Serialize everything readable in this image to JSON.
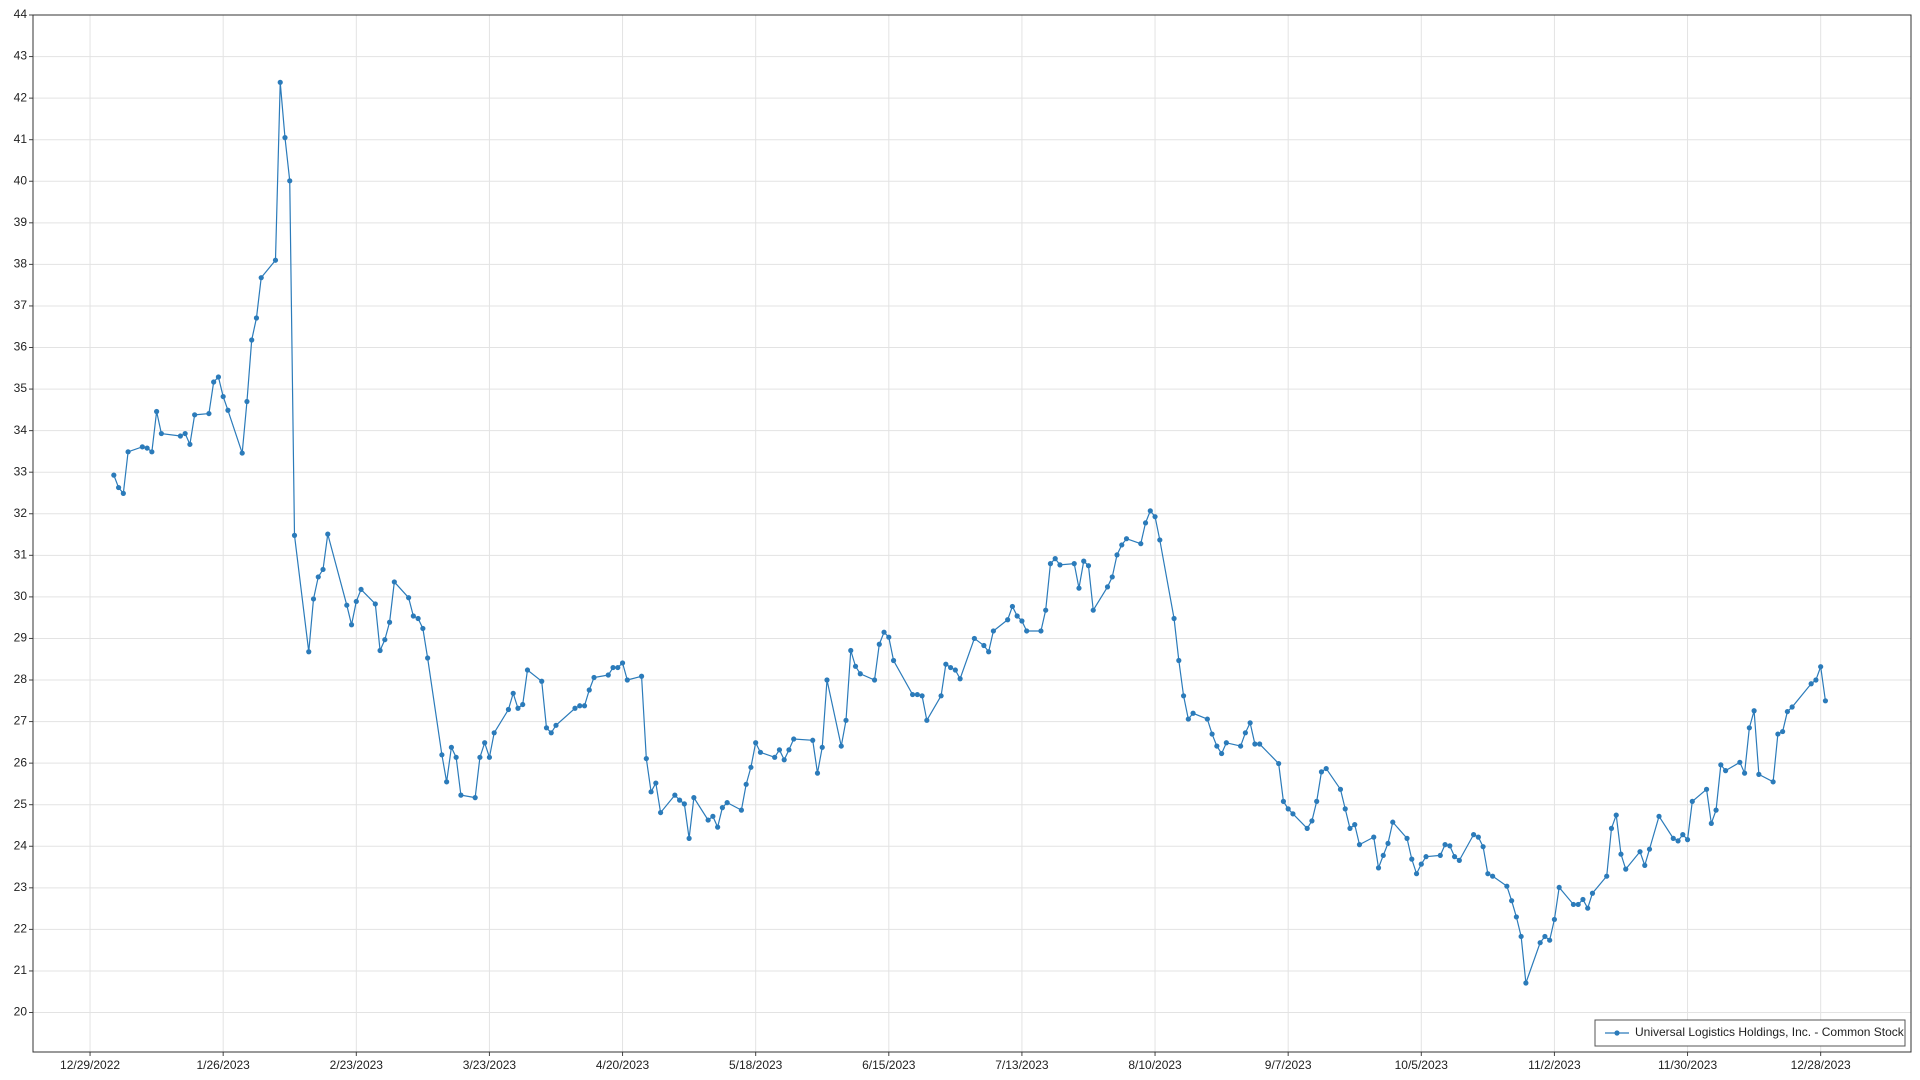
{
  "chart_data": {
    "type": "line",
    "x": [
      "1/3/2023",
      "1/4/2023",
      "1/5/2023",
      "1/6/2023",
      "1/9/2023",
      "1/10/2023",
      "1/11/2023",
      "1/12/2023",
      "1/13/2023",
      "1/17/2023",
      "1/18/2023",
      "1/19/2023",
      "1/20/2023",
      "1/23/2023",
      "1/24/2023",
      "1/25/2023",
      "1/26/2023",
      "1/27/2023",
      "1/30/2023",
      "1/31/2023",
      "2/1/2023",
      "2/2/2023",
      "2/3/2023",
      "2/6/2023",
      "2/7/2023",
      "2/8/2023",
      "2/9/2023",
      "2/10/2023",
      "2/13/2023",
      "2/14/2023",
      "2/15/2023",
      "2/16/2023",
      "2/17/2023",
      "2/21/2023",
      "2/22/2023",
      "2/23/2023",
      "2/24/2023",
      "2/27/2023",
      "2/28/2023",
      "3/1/2023",
      "3/2/2023",
      "3/3/2023",
      "3/6/2023",
      "3/7/2023",
      "3/8/2023",
      "3/9/2023",
      "3/10/2023",
      "3/13/2023",
      "3/14/2023",
      "3/15/2023",
      "3/16/2023",
      "3/17/2023",
      "3/20/2023",
      "3/21/2023",
      "3/22/2023",
      "3/23/2023",
      "3/24/2023",
      "3/27/2023",
      "3/28/2023",
      "3/29/2023",
      "3/30/2023",
      "3/31/2023",
      "4/3/2023",
      "4/4/2023",
      "4/5/2023",
      "4/6/2023",
      "4/10/2023",
      "4/11/2023",
      "4/12/2023",
      "4/13/2023",
      "4/14/2023",
      "4/17/2023",
      "4/18/2023",
      "4/19/2023",
      "4/20/2023",
      "4/21/2023",
      "4/24/2023",
      "4/25/2023",
      "4/26/2023",
      "4/27/2023",
      "4/28/2023",
      "5/1/2023",
      "5/2/2023",
      "5/3/2023",
      "5/4/2023",
      "5/5/2023",
      "5/8/2023",
      "5/9/2023",
      "5/10/2023",
      "5/11/2023",
      "5/12/2023",
      "5/15/2023",
      "5/16/2023",
      "5/17/2023",
      "5/18/2023",
      "5/19/2023",
      "5/22/2023",
      "5/23/2023",
      "5/24/2023",
      "5/25/2023",
      "5/26/2023",
      "5/30/2023",
      "5/31/2023",
      "6/1/2023",
      "6/2/2023",
      "6/5/2023",
      "6/6/2023",
      "6/7/2023",
      "6/8/2023",
      "6/9/2023",
      "6/12/2023",
      "6/13/2023",
      "6/14/2023",
      "6/15/2023",
      "6/16/2023",
      "6/20/2023",
      "6/21/2023",
      "6/22/2023",
      "6/23/2023",
      "6/26/2023",
      "6/27/2023",
      "6/28/2023",
      "6/29/2023",
      "6/30/2023",
      "7/3/2023",
      "7/5/2023",
      "7/6/2023",
      "7/7/2023",
      "7/10/2023",
      "7/11/2023",
      "7/12/2023",
      "7/13/2023",
      "7/14/2023",
      "7/17/2023",
      "7/18/2023",
      "7/19/2023",
      "7/20/2023",
      "7/21/2023",
      "7/24/2023",
      "7/25/2023",
      "7/26/2023",
      "7/27/2023",
      "7/28/2023",
      "7/31/2023",
      "8/1/2023",
      "8/2/2023",
      "8/3/2023",
      "8/4/2023",
      "8/7/2023",
      "8/8/2023",
      "8/9/2023",
      "8/10/2023",
      "8/11/2023",
      "8/14/2023",
      "8/15/2023",
      "8/16/2023",
      "8/17/2023",
      "8/18/2023",
      "8/21/2023",
      "8/22/2023",
      "8/23/2023",
      "8/24/2023",
      "8/25/2023",
      "8/28/2023",
      "8/29/2023",
      "8/30/2023",
      "8/31/2023",
      "9/1/2023",
      "9/5/2023",
      "9/6/2023",
      "9/7/2023",
      "9/8/2023",
      "9/11/2023",
      "9/12/2023",
      "9/13/2023",
      "9/14/2023",
      "9/15/2023",
      "9/18/2023",
      "9/19/2023",
      "9/20/2023",
      "9/21/2023",
      "9/22/2023",
      "9/25/2023",
      "9/26/2023",
      "9/27/2023",
      "9/28/2023",
      "9/29/2023",
      "10/2/2023",
      "10/3/2023",
      "10/4/2023",
      "10/5/2023",
      "10/6/2023",
      "10/9/2023",
      "10/10/2023",
      "10/11/2023",
      "10/12/2023",
      "10/13/2023",
      "10/16/2023",
      "10/17/2023",
      "10/18/2023",
      "10/19/2023",
      "10/20/2023",
      "10/23/2023",
      "10/24/2023",
      "10/25/2023",
      "10/26/2023",
      "10/27/2023",
      "10/30/2023",
      "10/31/2023",
      "11/1/2023",
      "11/2/2023",
      "11/3/2023",
      "11/6/2023",
      "11/7/2023",
      "11/8/2023",
      "11/9/2023",
      "11/10/2023",
      "11/13/2023",
      "11/14/2023",
      "11/15/2023",
      "11/16/2023",
      "11/17/2023",
      "11/20/2023",
      "11/21/2023",
      "11/22/2023",
      "11/24/2023",
      "11/27/2023",
      "11/28/2023",
      "11/29/2023",
      "11/30/2023",
      "12/1/2023",
      "12/4/2023",
      "12/5/2023",
      "12/6/2023",
      "12/7/2023",
      "12/8/2023",
      "12/11/2023",
      "12/12/2023",
      "12/13/2023",
      "12/14/2023",
      "12/15/2023",
      "12/18/2023",
      "12/19/2023",
      "12/20/2023",
      "12/21/2023",
      "12/22/2023",
      "12/26/2023",
      "12/27/2023",
      "12/28/2023",
      "12/29/2023"
    ],
    "series": [
      {
        "name": "Universal Logistics Holdings, Inc. - Common Stock",
        "color": "#2b7bba",
        "values": [
          32.93,
          32.63,
          32.49,
          33.49,
          33.61,
          33.58,
          33.49,
          34.46,
          33.93,
          33.87,
          33.93,
          33.67,
          34.38,
          34.41,
          35.17,
          35.29,
          34.82,
          34.49,
          33.46,
          34.7,
          36.18,
          36.71,
          37.68,
          38.1,
          42.38,
          41.05,
          40.01,
          31.48,
          28.68,
          29.95,
          30.48,
          30.66,
          31.51,
          29.8,
          29.33,
          29.89,
          30.18,
          29.83,
          28.71,
          28.97,
          29.39,
          30.36,
          29.98,
          29.54,
          29.48,
          29.24,
          28.53,
          26.2,
          25.55,
          26.38,
          26.14,
          25.23,
          25.17,
          26.14,
          26.49,
          26.14,
          26.73,
          27.29,
          27.68,
          27.32,
          27.41,
          28.24,
          27.97,
          26.85,
          26.73,
          26.91,
          27.32,
          27.38,
          27.38,
          27.76,
          28.06,
          28.12,
          28.3,
          28.3,
          28.41,
          28.0,
          28.09,
          26.11,
          25.31,
          25.52,
          24.81,
          25.23,
          25.11,
          25.02,
          24.19,
          25.17,
          24.63,
          24.72,
          24.46,
          24.93,
          25.05,
          24.87,
          25.49,
          25.9,
          26.49,
          26.26,
          26.14,
          26.32,
          26.08,
          26.32,
          26.58,
          26.55,
          25.76,
          26.38,
          28.0,
          26.41,
          27.03,
          28.71,
          28.33,
          28.15,
          28.0,
          28.86,
          29.15,
          29.03,
          28.47,
          27.65,
          27.65,
          27.62,
          27.03,
          27.62,
          28.38,
          28.3,
          28.24,
          28.03,
          29.0,
          28.83,
          28.68,
          29.18,
          29.45,
          29.77,
          29.54,
          29.42,
          29.18,
          29.18,
          29.68,
          30.8,
          30.92,
          30.77,
          30.8,
          30.21,
          30.86,
          30.75,
          29.68,
          30.24,
          30.48,
          31.01,
          31.25,
          31.4,
          31.28,
          31.78,
          32.07,
          31.93,
          31.37,
          29.48,
          28.47,
          27.62,
          27.06,
          27.2,
          27.06,
          26.7,
          26.41,
          26.23,
          26.49,
          26.41,
          26.73,
          26.97,
          26.46,
          26.46,
          25.99,
          25.08,
          24.9,
          24.78,
          24.43,
          24.61,
          25.08,
          25.79,
          25.87,
          25.37,
          24.9,
          24.43,
          24.52,
          24.04,
          24.22,
          23.48,
          23.78,
          24.07,
          24.58,
          24.19,
          23.69,
          23.34,
          23.57,
          23.75,
          23.78,
          24.04,
          24.01,
          23.75,
          23.66,
          24.28,
          24.22,
          23.99,
          23.34,
          23.28,
          23.04,
          22.69,
          22.3,
          21.83,
          20.71,
          21.68,
          21.83,
          21.74,
          22.24,
          23.01,
          22.6,
          22.6,
          22.72,
          22.51,
          22.87,
          23.28,
          24.43,
          24.75,
          23.81,
          23.45,
          23.87,
          23.54,
          23.93,
          24.72,
          24.19,
          24.13,
          24.28,
          24.16,
          25.08,
          25.37,
          24.55,
          24.87,
          25.96,
          25.82,
          26.02,
          25.76,
          26.85,
          27.26,
          25.73,
          25.55,
          26.7,
          26.76,
          27.24,
          27.35,
          27.91,
          28.0,
          28.32,
          27.5
        ]
      }
    ],
    "xlim": [
      "12/17/2022",
      "1/16/2024"
    ],
    "xticks": [
      "12/29/2022",
      "1/26/2023",
      "2/23/2023",
      "3/23/2023",
      "4/20/2023",
      "5/18/2023",
      "6/15/2023",
      "7/13/2023",
      "8/10/2023",
      "9/7/2023",
      "10/5/2023",
      "11/2/2023",
      "11/30/2023",
      "12/28/2023"
    ],
    "ylim": [
      19.05,
      44
    ],
    "yticks": [
      20,
      21,
      22,
      23,
      24,
      25,
      26,
      27,
      28,
      29,
      30,
      31,
      32,
      33,
      34,
      35,
      36,
      37,
      38,
      39,
      40,
      41,
      42,
      43,
      44
    ],
    "grid": true,
    "legend": "lower right"
  }
}
